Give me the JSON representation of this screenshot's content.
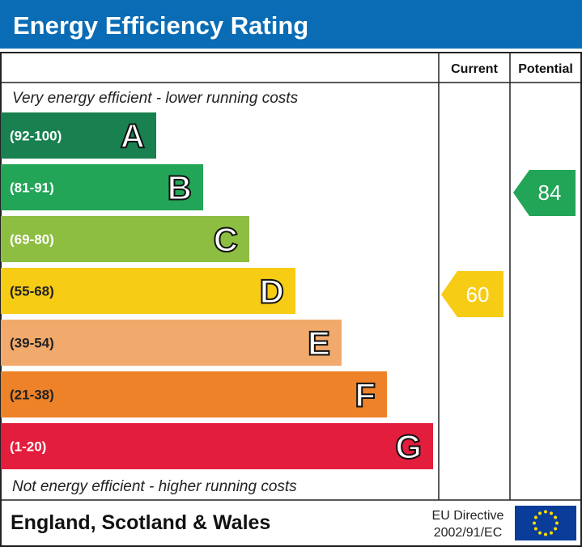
{
  "header": {
    "title": "Energy Efficiency Rating"
  },
  "columns": {
    "current": "Current",
    "potential": "Potential"
  },
  "top_note": "Very energy efficient - lower running costs",
  "bottom_note": "Not energy efficient - higher running costs",
  "bands": [
    {
      "range": "(92-100)",
      "letter": "A",
      "color": "#198150"
    },
    {
      "range": "(81-91)",
      "letter": "B",
      "color": "#22a557"
    },
    {
      "range": "(69-80)",
      "letter": "C",
      "color": "#8dbd41"
    },
    {
      "range": "(55-68)",
      "letter": "D",
      "color": "#f6cc15"
    },
    {
      "range": "(39-54)",
      "letter": "E",
      "color": "#f1aa6c"
    },
    {
      "range": "(21-38)",
      "letter": "F",
      "color": "#ed8228"
    },
    {
      "range": "(1-20)",
      "letter": "G",
      "color": "#e31d3c"
    }
  ],
  "current": {
    "value": 60,
    "color": "#f6cc15"
  },
  "potential": {
    "value": 84,
    "color": "#22a557"
  },
  "footer": {
    "region": "England, Scotland & Wales",
    "directive_line1": "EU Directive",
    "directive_line2": "2002/91/EC"
  }
}
